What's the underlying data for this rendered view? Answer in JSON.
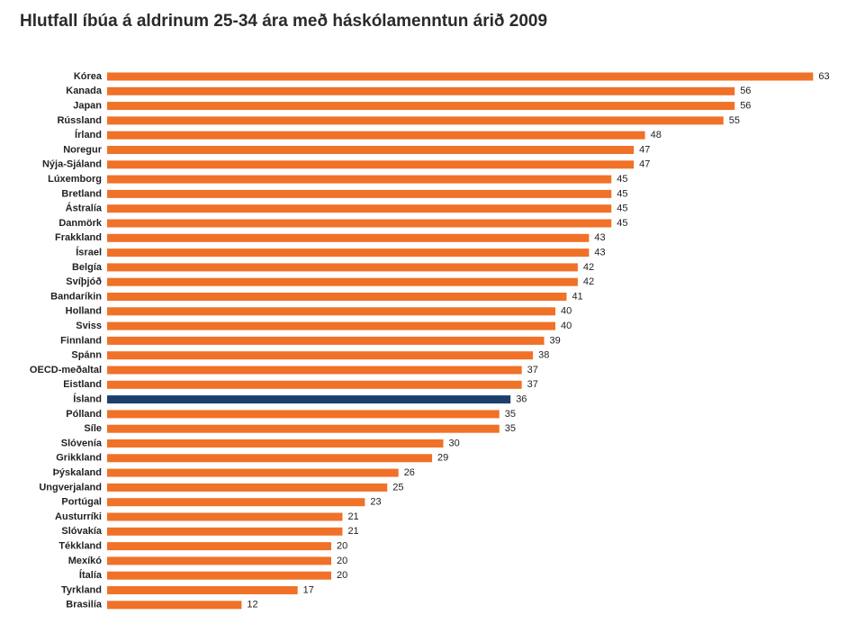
{
  "chart_data": {
    "type": "hbar",
    "title": "Hlutfall íbúa á aldrinum 25-34 ára með háskólamenntun árið 2009",
    "categories": [
      "Kórea",
      "Kanada",
      "Japan",
      "Rússland",
      "Írland",
      "Noregur",
      "Nýja-Sjáland",
      "Lúxemborg",
      "Bretland",
      "Ástralía",
      "Danmörk",
      "Frakkland",
      "Ísrael",
      "Belgía",
      "Svíþjóð",
      "Bandaríkin",
      "Holland",
      "Sviss",
      "Finnland",
      "Spánn",
      "OECD-meðaltal",
      "Eistland",
      "Ísland",
      "Pólland",
      "Síle",
      "Slóvenía",
      "Grikkland",
      "Þýskaland",
      "Ungverjaland",
      "Portúgal",
      "Austurríki",
      "Slóvakía",
      "Tékkland",
      "Mexíkó",
      "Ítalía",
      "Tyrkland",
      "Brasilía"
    ],
    "values": [
      63,
      56,
      56,
      55,
      48,
      47,
      47,
      45,
      45,
      45,
      45,
      43,
      43,
      42,
      42,
      41,
      40,
      40,
      39,
      38,
      37,
      37,
      36,
      35,
      35,
      30,
      29,
      26,
      25,
      23,
      21,
      21,
      20,
      20,
      20,
      17,
      12
    ],
    "colors": [
      "#f07128",
      "#f07128",
      "#f07128",
      "#f07128",
      "#f07128",
      "#f07128",
      "#f07128",
      "#f07128",
      "#f07128",
      "#f07128",
      "#f07128",
      "#f07128",
      "#f07128",
      "#f07128",
      "#f07128",
      "#f07128",
      "#f07128",
      "#f07128",
      "#f07128",
      "#f07128",
      "#f07128",
      "#f07128",
      "#1d3f6e",
      "#f07128",
      "#f07128",
      "#f07128",
      "#f07128",
      "#f07128",
      "#f07128",
      "#f07128",
      "#f07128",
      "#f07128",
      "#f07128",
      "#f07128",
      "#f07128",
      "#f07128",
      "#f07128"
    ]
  }
}
